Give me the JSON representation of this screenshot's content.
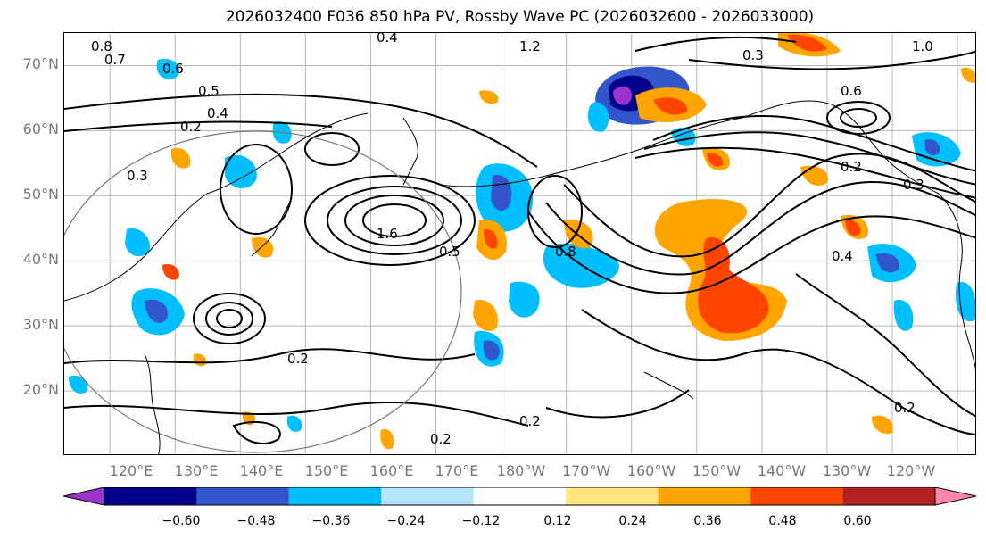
{
  "title": "2026032400 F036 850 hPa PV, Rossby Wave PC (2026032600 - 2026033000)",
  "lat_labels": [
    "70°N",
    "60°N",
    "50°N",
    "40°N",
    "30°N",
    "20°N"
  ],
  "lon_labels": [
    "120°E",
    "130°E",
    "140°E",
    "150°E",
    "160°E",
    "170°E",
    "180°W",
    "170°W",
    "160°W",
    "150°W",
    "140°W",
    "130°W",
    "120°W"
  ],
  "map_extent": {
    "lon_min": 113,
    "lon_max": 253,
    "lat_min": 10,
    "lat_max": 75
  },
  "contour_labels": [
    "0.8",
    "0.7",
    "0.6",
    "0.5",
    "0.4",
    "0.3",
    "0.2",
    "1.2",
    "1.0",
    "1.6",
    "0.8",
    "0.4",
    "0.3",
    "0.2",
    "0.2",
    "0.2",
    "0.2",
    "0.4",
    "0.5",
    "0.6",
    "0.3",
    "0.2"
  ],
  "colorbar": {
    "ticks": [
      "−0.60",
      "−0.48",
      "−0.36",
      "−0.24",
      "−0.12",
      "0.12",
      "0.24",
      "0.36",
      "0.48",
      "0.60"
    ],
    "tick_values": [
      -0.6,
      -0.48,
      -0.36,
      -0.24,
      -0.12,
      0.12,
      0.24,
      0.36,
      0.48,
      0.6
    ],
    "colors": [
      "#9933cc",
      "#00008b",
      "#3355cc",
      "#00bfff",
      "#b3e5fc",
      "#ffffff",
      "#ffe680",
      "#ffa500",
      "#ff4500",
      "#b22222",
      "#ff88aa"
    ]
  }
}
